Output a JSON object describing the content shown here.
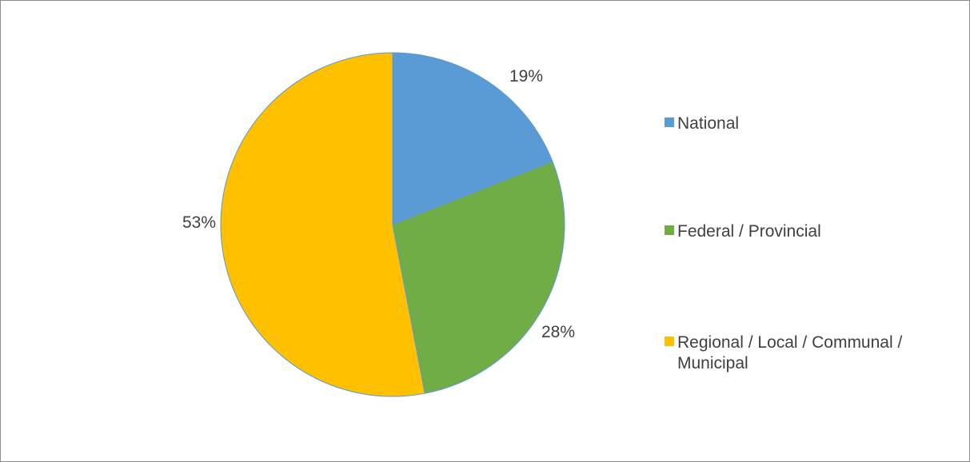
{
  "chart_data": {
    "type": "pie",
    "title": "",
    "slices": [
      {
        "name": "National",
        "value": 19,
        "label": "19%",
        "color": "#5b9bd5"
      },
      {
        "name": "Federal / Provincial",
        "value": 28,
        "label": "28%",
        "color": "#70ad47"
      },
      {
        "name": "Regional / Local / Communal / Municipal",
        "value": 53,
        "label": "53%",
        "color": "#ffc000"
      }
    ],
    "start_angle": "12 o'clock",
    "direction": "clockwise",
    "legend_position": "right",
    "slice_edge_color": "#5b9bd5"
  }
}
